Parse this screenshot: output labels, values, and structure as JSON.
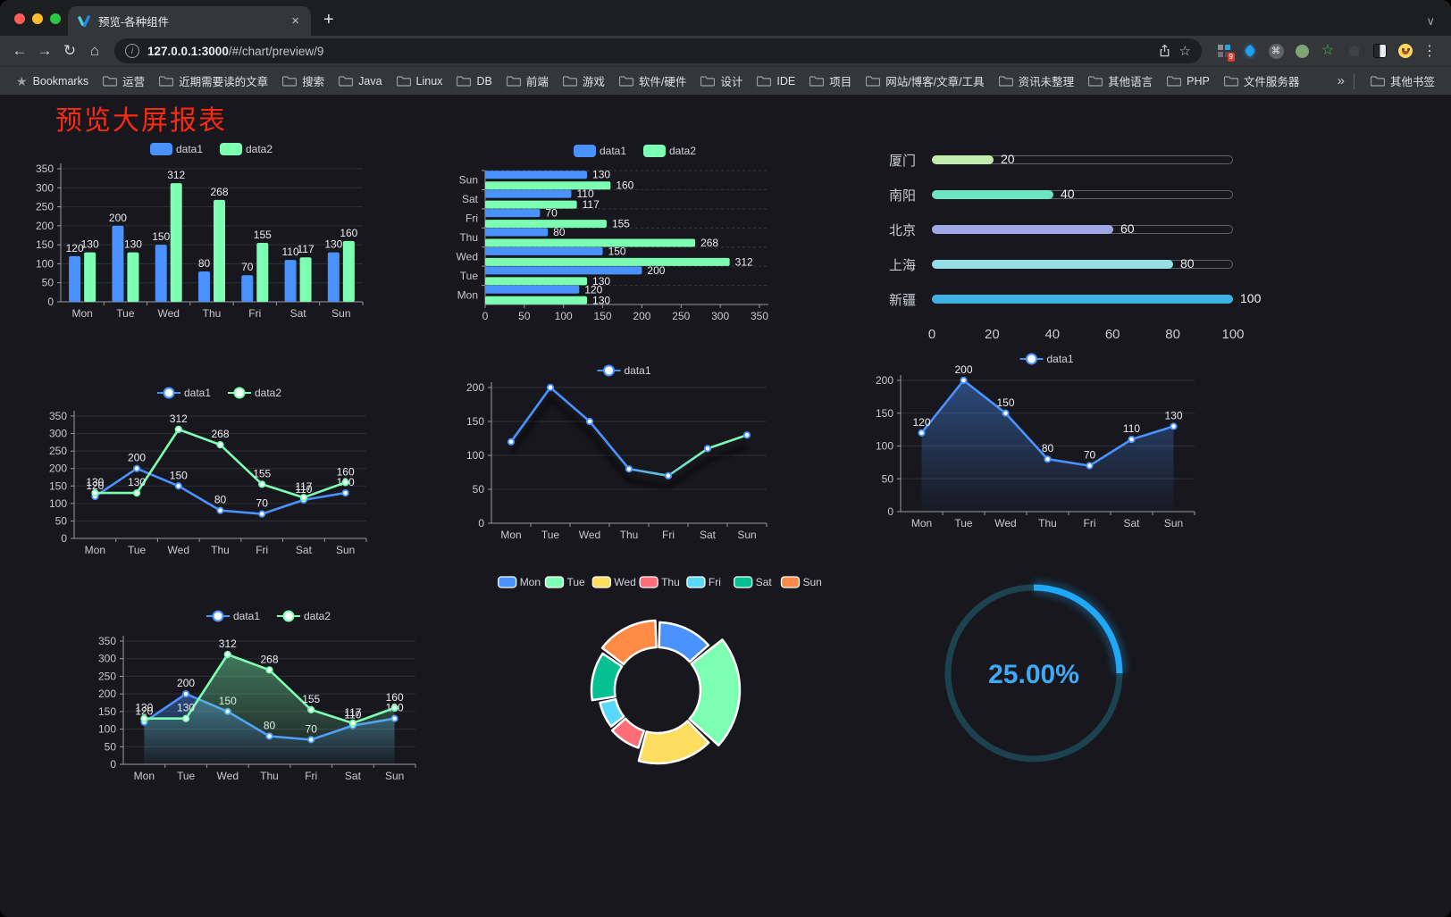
{
  "browser": {
    "traffic_lights": [
      "#ff5f57",
      "#febc2e",
      "#28c840"
    ],
    "tab_title": "预览-各种组件",
    "url_host": "127.0.0.1:3000",
    "url_path": "/#/chart/preview/9",
    "extension_badge": "9",
    "bookmarks_bar": {
      "root_label": "Bookmarks",
      "folders": [
        "运营",
        "近期需要读的文章",
        "搜索",
        "Java",
        "Linux",
        "DB",
        "前端",
        "游戏",
        "软件/硬件",
        "设计",
        "IDE",
        "项目",
        "网站/博客/文章/工具",
        "资讯未整理",
        "其他语言",
        "PHP",
        "文件服务器"
      ],
      "overflow_symbol": "»",
      "other_bookmarks_label": "其他书签"
    }
  },
  "icons": {
    "back": "←",
    "forward": "→",
    "reload": "↻",
    "home": "⌂",
    "star": "☆",
    "bookmarks_star": "★",
    "kebab": "⋮",
    "new_tab": "+",
    "close": "×",
    "tabstrip_chevron": "∨",
    "info_letter": "i",
    "command": "⌘",
    "green_star": "☆"
  },
  "page": {
    "title": "预览大屏报表",
    "title_color": "#fb2a10",
    "background": "#17171d"
  },
  "chart_data": [
    {
      "id": "c1",
      "type": "bar",
      "categories": [
        "Mon",
        "Tue",
        "Wed",
        "Thu",
        "Fri",
        "Sat",
        "Sun"
      ],
      "series": [
        {
          "name": "data1",
          "color": "#4992ff",
          "values": [
            120,
            200,
            150,
            80,
            70,
            110,
            130
          ]
        },
        {
          "name": "data2",
          "color": "#7cffb2",
          "values": [
            130,
            130,
            312,
            268,
            155,
            117,
            160
          ]
        }
      ],
      "ylim": [
        0,
        350
      ],
      "ytick": 50,
      "legend": true,
      "labels": true,
      "grid": true
    },
    {
      "id": "c2",
      "type": "bar-horizontal",
      "categories": [
        "Mon",
        "Tue",
        "Wed",
        "Thu",
        "Fri",
        "Sat",
        "Sun"
      ],
      "category_order": "Mon at bottom, Sun at top",
      "series": [
        {
          "name": "data1",
          "color": "#4992ff",
          "values": [
            120,
            200,
            150,
            80,
            70,
            110,
            130
          ]
        },
        {
          "name": "data2",
          "color": "#7cffb2",
          "values": [
            130,
            130,
            312,
            268,
            155,
            117,
            160
          ]
        }
      ],
      "xlim": [
        0,
        350
      ],
      "xtick": 50,
      "legend": true,
      "labels": true
    },
    {
      "id": "c3",
      "type": "progress",
      "rows": [
        {
          "label": "厦门",
          "value": 20,
          "color": "#c4ebad"
        },
        {
          "label": "南阳",
          "value": 40,
          "color": "#6be6c1"
        },
        {
          "label": "北京",
          "value": 60,
          "color": "#a0a7e6"
        },
        {
          "label": "上海",
          "value": 80,
          "color": "#96dee8"
        },
        {
          "label": "新疆",
          "value": 100,
          "color": "#3fb1e3"
        }
      ],
      "xlim": [
        0,
        100
      ],
      "xticks": [
        0,
        20,
        40,
        60,
        80,
        100
      ]
    },
    {
      "id": "c4",
      "type": "line",
      "categories": [
        "Mon",
        "Tue",
        "Wed",
        "Thu",
        "Fri",
        "Sat",
        "Sun"
      ],
      "series": [
        {
          "name": "data1",
          "color": "#4992ff",
          "values": [
            120,
            200,
            150,
            80,
            70,
            110,
            130
          ]
        },
        {
          "name": "data2",
          "color": "#7cffb2",
          "values": [
            130,
            130,
            312,
            268,
            155,
            117,
            160
          ]
        }
      ],
      "ylim": [
        0,
        350
      ],
      "ytick": 50,
      "legend": true,
      "labels": true,
      "markers": true
    },
    {
      "id": "c5",
      "type": "line",
      "categories": [
        "Mon",
        "Tue",
        "Wed",
        "Thu",
        "Fri",
        "Sat",
        "Sun"
      ],
      "series": [
        {
          "name": "data1",
          "color": "#4992ff",
          "gradient": [
            "#4992ff",
            "#7cffb2"
          ],
          "values": [
            120,
            200,
            150,
            80,
            70,
            110,
            130
          ]
        }
      ],
      "ylim": [
        0,
        200
      ],
      "ytick": 50,
      "legend": true,
      "labels": false,
      "markers": true,
      "shadow": true
    },
    {
      "id": "c6",
      "type": "line",
      "categories": [
        "Mon",
        "Tue",
        "Wed",
        "Thu",
        "Fri",
        "Sat",
        "Sun"
      ],
      "series": [
        {
          "name": "data1",
          "color": "#4992ff",
          "area": true,
          "values": [
            120,
            200,
            150,
            80,
            70,
            110,
            130
          ]
        }
      ],
      "ylim": [
        0,
        200
      ],
      "ytick": 50,
      "legend": true,
      "labels": true,
      "markers": true
    },
    {
      "id": "c7",
      "type": "line",
      "categories": [
        "Mon",
        "Tue",
        "Wed",
        "Thu",
        "Fri",
        "Sat",
        "Sun"
      ],
      "series": [
        {
          "name": "data1",
          "color": "#4992ff",
          "area": true,
          "values": [
            120,
            200,
            150,
            80,
            70,
            110,
            130
          ]
        },
        {
          "name": "data2",
          "color": "#7cffb2",
          "area": true,
          "values": [
            130,
            130,
            312,
            268,
            155,
            117,
            160
          ]
        }
      ],
      "ylim": [
        0,
        350
      ],
      "ytick": 50,
      "legend": true,
      "labels": true,
      "markers": true
    },
    {
      "id": "c8",
      "type": "pie",
      "rose": true,
      "inner_radius_ratio": 0.55,
      "slices": [
        {
          "name": "Mon",
          "value": 120,
          "color": "#4992ff"
        },
        {
          "name": "Tue",
          "value": 200,
          "color": "#7cffb2"
        },
        {
          "name": "Wed",
          "value": 150,
          "color": "#fddd60"
        },
        {
          "name": "Thu",
          "value": 80,
          "color": "#ff6e76"
        },
        {
          "name": "Fri",
          "value": 70,
          "color": "#58d9f9"
        },
        {
          "name": "Sat",
          "value": 110,
          "color": "#05c091"
        },
        {
          "name": "Sun",
          "value": 130,
          "color": "#ff8a45"
        }
      ],
      "legend": true
    },
    {
      "id": "c9",
      "type": "gauge",
      "value": 25,
      "max": 100,
      "display": "25.00%",
      "color": "#1fa7f8",
      "track_color": "#1c4250",
      "text_color": "#3fa9f5"
    }
  ]
}
